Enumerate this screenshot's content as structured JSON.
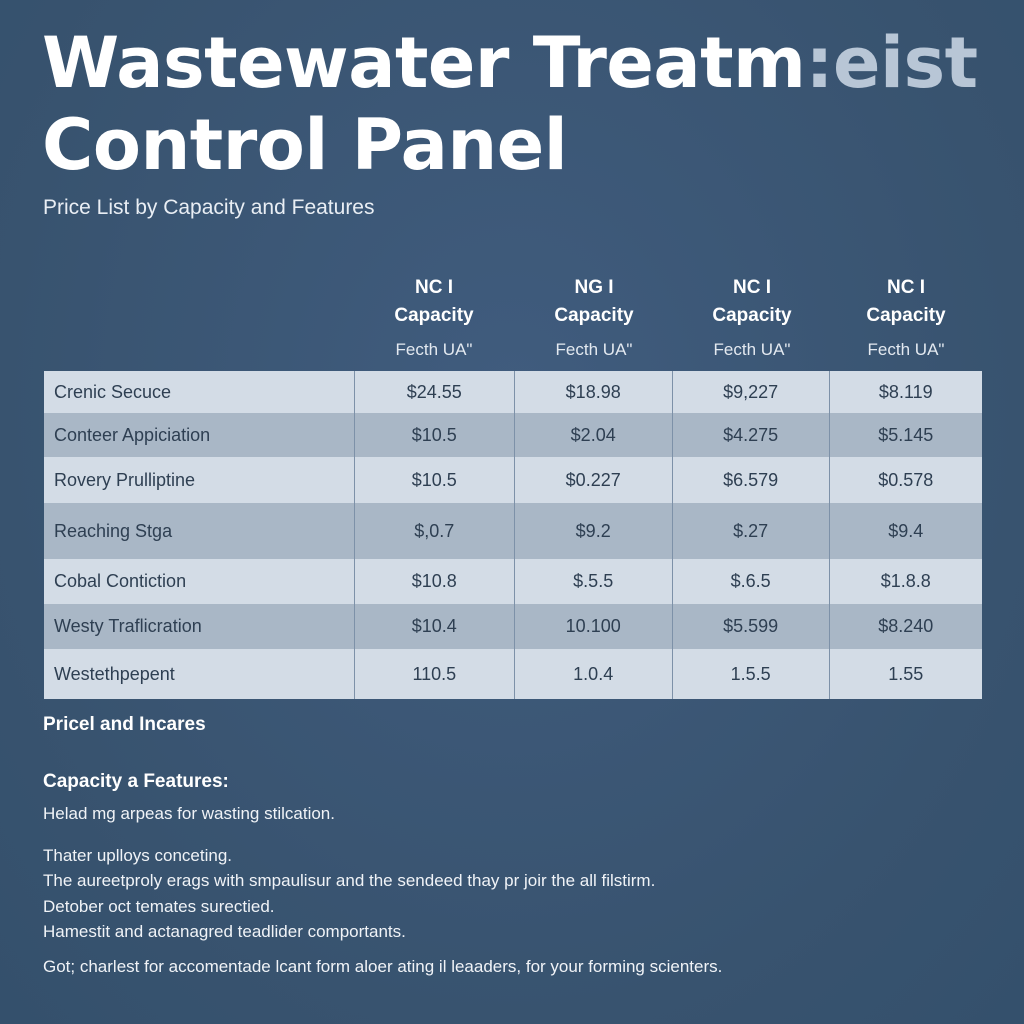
{
  "header": {
    "title_line1_main": "Wastewater Treatm",
    "title_line1_fade": ":eist",
    "title_line2": "Control Panel",
    "subtitle": "Price List by Capacity and Features"
  },
  "columns": [
    {
      "line1": "NC I",
      "line2": "Capacity",
      "line3": "Fecth UA\""
    },
    {
      "line1": "NG I",
      "line2": "Capacity",
      "line3": "Fecth UA\""
    },
    {
      "line1": "NC I",
      "line2": "Capacity",
      "line3": "Fecth UA\""
    },
    {
      "line1": "NC I",
      "line2": "Capacity",
      "line3": "Fecth UA\""
    }
  ],
  "rows": [
    {
      "label": "Crenic Secuce",
      "values": [
        "$24.55",
        "$18.98",
        "$9,227",
        "$8.119"
      ]
    },
    {
      "label": "Conteer Appiciation",
      "values": [
        "$10.5",
        "$2.04",
        "$4.275",
        "$5.145"
      ]
    },
    {
      "label": "Rovery Prulliptine",
      "values": [
        "$10.5",
        "$0.227",
        "$6.579",
        "$0.578"
      ]
    },
    {
      "label": "Reaching Stga",
      "values": [
        "$,0.7",
        "$9.2",
        "$.27",
        "$9.4"
      ]
    },
    {
      "label": "Cobal Contiction",
      "values": [
        "$10.8",
        "$.5.5",
        "$.6.5",
        "$1.8.8"
      ]
    },
    {
      "label": "Westy Traflicration",
      "values": [
        "$10.4",
        "10.100",
        "$5.599",
        "$8.240"
      ]
    },
    {
      "label": "Westethpepent",
      "values": [
        "110.5",
        "1.0.4",
        "1.5.5",
        "1.55"
      ]
    }
  ],
  "sections": {
    "pricing_head": "Pricel and Incares",
    "features_head": "Capacity a Features:",
    "lines": [
      "Helad mg arpeas for wasting stilcation.",
      "Thater upl​loys conceting.",
      "The aureetproly erags with smpaulisur and the sendeed thay pr joir the all filstirm.",
      "Detober oct temates surectied.",
      "Hamestit and actanagred teadlider comportants.",
      "Got; charlest for accomentade lcant form aloer ating il leaaders, for your forming scienters."
    ]
  }
}
